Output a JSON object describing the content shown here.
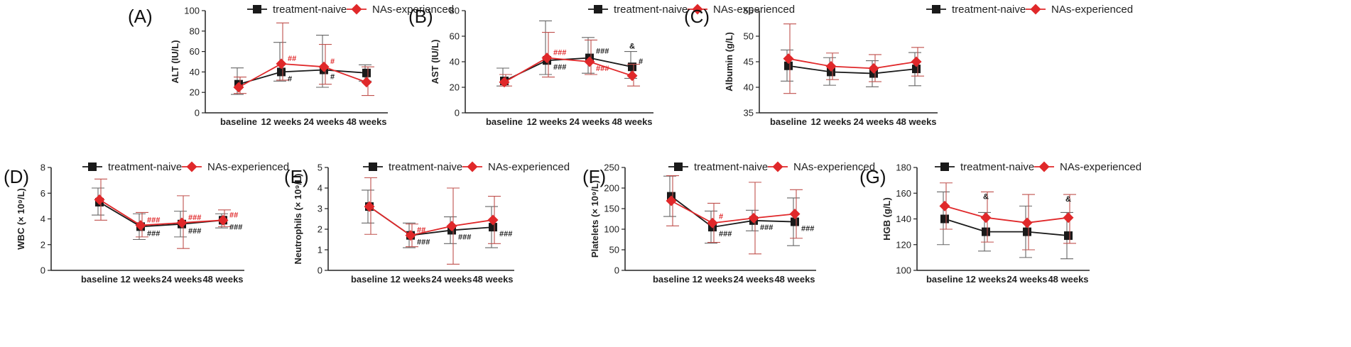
{
  "colors": {
    "naive": "#1a1a1a",
    "experienced": "#e0282a",
    "naive_err": "#666666",
    "experienced_err": "#c0504d"
  },
  "legend": {
    "naive_label": "treatment-naive",
    "experienced_label": "NAs-experienced"
  },
  "chart_data": [
    {
      "type": "line",
      "panel": "(A)",
      "ylabel": "ALT (IU/L)",
      "categories": [
        "baseline",
        "12 weeks",
        "24 weeks",
        "48 weeks"
      ],
      "ylim": [
        0,
        100
      ],
      "yticks": [
        0,
        20,
        40,
        60,
        80,
        100
      ],
      "yticklabels": [
        "0",
        "20",
        "40",
        "60",
        "80",
        "100"
      ],
      "series": [
        {
          "name": "treatment-naive",
          "values": [
            28,
            40,
            42,
            39
          ],
          "err_lo": [
            18,
            31,
            25,
            31
          ],
          "err_hi": [
            44,
            69,
            76,
            47
          ]
        },
        {
          "name": "NAs-experienced",
          "values": [
            25,
            48,
            45,
            30
          ],
          "err_lo": [
            19,
            32,
            28,
            17
          ],
          "err_hi": [
            35,
            88,
            67,
            45
          ]
        }
      ],
      "annotations": [
        {
          "text": "##",
          "series": 1,
          "point": 1,
          "side": "right",
          "color": "red"
        },
        {
          "text": "#",
          "series": 0,
          "point": 1,
          "side": "right-below",
          "color": "black"
        },
        {
          "text": "#",
          "series": 1,
          "point": 2,
          "side": "right",
          "color": "red"
        },
        {
          "text": "#",
          "series": 0,
          "point": 2,
          "side": "right-below",
          "color": "black"
        }
      ]
    },
    {
      "type": "line",
      "panel": "(B)",
      "ylabel": "AST (IU/L)",
      "categories": [
        "baseline",
        "12 weeks",
        "24 weeks",
        "48 weeks"
      ],
      "ylim": [
        0,
        80
      ],
      "yticks": [
        0,
        20,
        40,
        60,
        80
      ],
      "yticklabels": [
        "0",
        "20",
        "40",
        "60",
        "80"
      ],
      "series": [
        {
          "name": "treatment-naive",
          "values": [
            25,
            41,
            43,
            36
          ],
          "err_lo": [
            21,
            30,
            31,
            27
          ],
          "err_hi": [
            35,
            72,
            59,
            48
          ]
        },
        {
          "name": "NAs-experienced",
          "values": [
            24,
            43,
            40,
            29
          ],
          "err_lo": [
            21,
            28,
            30,
            21
          ],
          "err_hi": [
            30,
            63,
            57,
            38
          ]
        }
      ],
      "annotations": [
        {
          "text": "###",
          "series": 1,
          "point": 1,
          "side": "right",
          "color": "red"
        },
        {
          "text": "###",
          "series": 0,
          "point": 1,
          "side": "right-below",
          "color": "black"
        },
        {
          "text": "###",
          "series": 0,
          "point": 2,
          "side": "right-above",
          "color": "black"
        },
        {
          "text": "###",
          "series": 1,
          "point": 2,
          "side": "right-below",
          "color": "red"
        },
        {
          "text": "&",
          "series": 0,
          "point": 3,
          "side": "above",
          "color": "black"
        },
        {
          "text": "#",
          "series": 0,
          "point": 3,
          "side": "right",
          "color": "black"
        }
      ]
    },
    {
      "type": "line",
      "panel": "(C)",
      "ylabel": "Albumin (g/L)",
      "categories": [
        "baseline",
        "12 weeks",
        "24 weeks",
        "48 weeks"
      ],
      "ylim": [
        35,
        55
      ],
      "yticks": [
        35,
        40,
        45,
        50,
        55
      ],
      "yticklabels": [
        "35",
        "40",
        "45",
        "50",
        "55"
      ],
      "series": [
        {
          "name": "treatment-naive",
          "values": [
            44.2,
            43.0,
            42.7,
            43.6
          ],
          "err_lo": [
            41.2,
            40.4,
            40.1,
            40.3
          ],
          "err_hi": [
            47.3,
            45.8,
            45.2,
            46.8
          ]
        },
        {
          "name": "NAs-experienced",
          "values": [
            45.6,
            44.1,
            43.7,
            45.0
          ],
          "err_lo": [
            38.8,
            41.5,
            41.1,
            42.2
          ],
          "err_hi": [
            52.4,
            46.7,
            46.4,
            47.8
          ]
        }
      ],
      "annotations": []
    },
    {
      "type": "line",
      "panel": "(D)",
      "ylabel": "WBC (× 10⁹/L)",
      "categories": [
        "baseline",
        "12 weeks",
        "24 weeks",
        "48 weeks"
      ],
      "ylim": [
        0,
        8
      ],
      "yticks": [
        0,
        2,
        4,
        6,
        8
      ],
      "yticklabels": [
        "0",
        "2",
        "4",
        "6",
        "8"
      ],
      "series": [
        {
          "name": "treatment-naive",
          "values": [
            5.3,
            3.4,
            3.6,
            3.9
          ],
          "err_lo": [
            4.3,
            2.4,
            2.6,
            3.3
          ],
          "err_hi": [
            6.4,
            4.4,
            4.6,
            4.4
          ]
        },
        {
          "name": "NAs-experienced",
          "values": [
            5.5,
            3.5,
            3.7,
            3.9
          ],
          "err_lo": [
            3.9,
            2.6,
            1.7,
            3.4
          ],
          "err_hi": [
            7.1,
            4.5,
            5.8,
            4.7
          ]
        }
      ],
      "annotations": [
        {
          "text": "###",
          "series": 1,
          "point": 1,
          "side": "right",
          "color": "red"
        },
        {
          "text": "###",
          "series": 0,
          "point": 1,
          "side": "right-below",
          "color": "black"
        },
        {
          "text": "###",
          "series": 1,
          "point": 2,
          "side": "right",
          "color": "red"
        },
        {
          "text": "###",
          "series": 0,
          "point": 2,
          "side": "right-below",
          "color": "black"
        },
        {
          "text": "##",
          "series": 1,
          "point": 3,
          "side": "right",
          "color": "red"
        },
        {
          "text": "###",
          "series": 0,
          "point": 3,
          "side": "right-below",
          "color": "black"
        }
      ]
    },
    {
      "type": "line",
      "panel": "(E)",
      "ylabel": "Neutrophils (× 10⁹/L)",
      "categories": [
        "baseline",
        "12 weeks",
        "24 weeks",
        "48 weeks"
      ],
      "ylim": [
        0,
        5
      ],
      "yticks": [
        0,
        1,
        2,
        3,
        4,
        5
      ],
      "yticklabels": [
        "0",
        "1",
        "2",
        "3",
        "4",
        "5"
      ],
      "series": [
        {
          "name": "treatment-naive",
          "values": [
            3.1,
            1.7,
            1.95,
            2.1
          ],
          "err_lo": [
            2.3,
            1.1,
            1.3,
            1.1
          ],
          "err_hi": [
            3.9,
            2.3,
            2.6,
            3.1
          ]
        },
        {
          "name": "NAs-experienced",
          "values": [
            3.1,
            1.7,
            2.15,
            2.45
          ],
          "err_lo": [
            1.75,
            1.15,
            0.3,
            1.3
          ],
          "err_hi": [
            4.5,
            2.25,
            4.0,
            3.6
          ]
        }
      ],
      "annotations": [
        {
          "text": "##",
          "series": 1,
          "point": 1,
          "side": "right",
          "color": "red"
        },
        {
          "text": "###",
          "series": 0,
          "point": 1,
          "side": "right-below",
          "color": "black"
        },
        {
          "text": "###",
          "series": 0,
          "point": 2,
          "side": "right-below",
          "color": "black"
        },
        {
          "text": "###",
          "series": 0,
          "point": 3,
          "side": "right-below",
          "color": "black"
        }
      ]
    },
    {
      "type": "line",
      "panel": "(F)",
      "ylabel": "Platelets (× 10⁹/L)",
      "categories": [
        "baseline",
        "12 weeks",
        "24 weeks",
        "48 weeks"
      ],
      "ylim": [
        0,
        250
      ],
      "yticks": [
        0,
        50,
        100,
        150,
        200,
        250
      ],
      "yticklabels": [
        "0",
        "50",
        "100",
        "150",
        "200",
        "250"
      ],
      "series": [
        {
          "name": "treatment-naive",
          "values": [
            180,
            105,
            121,
            118
          ],
          "err_lo": [
            131,
            66,
            96,
            60
          ],
          "err_hi": [
            229,
            144,
            146,
            176
          ]
        },
        {
          "name": "NAs-experienced",
          "values": [
            169,
            115,
            127,
            137
          ],
          "err_lo": [
            108,
            68,
            40,
            78
          ],
          "err_hi": [
            230,
            163,
            214,
            196
          ]
        }
      ],
      "annotations": [
        {
          "text": "#",
          "series": 1,
          "point": 1,
          "side": "right-above",
          "color": "red"
        },
        {
          "text": "###",
          "series": 0,
          "point": 1,
          "side": "right-below",
          "color": "black"
        },
        {
          "text": "###",
          "series": 0,
          "point": 2,
          "side": "right-below",
          "color": "black"
        },
        {
          "text": "###",
          "series": 0,
          "point": 3,
          "side": "right-below",
          "color": "black"
        }
      ]
    },
    {
      "type": "line",
      "panel": "(G)",
      "ylabel": "HGB (g/L)",
      "categories": [
        "baseline",
        "12 weeks",
        "24 weeks",
        "48 weeks"
      ],
      "ylim": [
        100,
        180
      ],
      "yticks": [
        100,
        120,
        140,
        160,
        180
      ],
      "yticklabels": [
        "100",
        "120",
        "140",
        "160",
        "180"
      ],
      "series": [
        {
          "name": "treatment-naive",
          "values": [
            140,
            130,
            130,
            127
          ],
          "err_lo": [
            120,
            115,
            110,
            109
          ],
          "err_hi": [
            161,
            145,
            150,
            145
          ]
        },
        {
          "name": "NAs-experienced",
          "values": [
            150,
            141,
            137,
            141
          ],
          "err_lo": [
            132,
            122,
            116,
            121
          ],
          "err_hi": [
            168,
            161,
            159,
            159
          ]
        }
      ],
      "annotations": [
        {
          "text": "&",
          "series": 1,
          "point": 1,
          "side": "above-high",
          "color": "black"
        },
        {
          "text": "&",
          "series": 1,
          "point": 3,
          "side": "above-high",
          "color": "black"
        }
      ]
    }
  ]
}
